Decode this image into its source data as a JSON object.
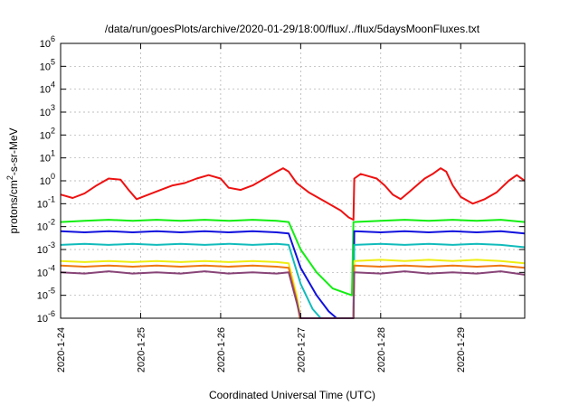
{
  "chart_data": {
    "type": "line",
    "title": "/data/run/goesPlots/archive/2020-01-29/18:00/flux/../flux/5daysMoonFluxes.txt",
    "xlabel": "Coordinated Universal Time (UTC)",
    "ylabel_parts": {
      "pre": "protons/cm",
      "sup": "2",
      "post": "-s-sr-MeV"
    },
    "y_scale": "log",
    "ylim_exp": [
      -6,
      6
    ],
    "y_ticks": [
      {
        "base": "10",
        "exp": "-6"
      },
      {
        "base": "10",
        "exp": "-5"
      },
      {
        "base": "10",
        "exp": "-4"
      },
      {
        "base": "10",
        "exp": "-3"
      },
      {
        "base": "10",
        "exp": "-2"
      },
      {
        "base": "10",
        "exp": "-1"
      },
      {
        "base": "10",
        "exp": "0"
      },
      {
        "base": "10",
        "exp": "1"
      },
      {
        "base": "10",
        "exp": "2"
      },
      {
        "base": "10",
        "exp": "3"
      },
      {
        "base": "10",
        "exp": "4"
      },
      {
        "base": "10",
        "exp": "5"
      },
      {
        "base": "10",
        "exp": "6"
      }
    ],
    "xlim_days": [
      0,
      5.8
    ],
    "x_ticks": [
      "2020-1-24",
      "2020-1-25",
      "2020-1-26",
      "2020-1-27",
      "2020-1-28",
      "2020-1-29"
    ],
    "grid": true,
    "series": [
      {
        "color": "#ee1111",
        "points": [
          [
            0,
            -0.6
          ],
          [
            0.15,
            -0.75
          ],
          [
            0.3,
            -0.55
          ],
          [
            0.45,
            -0.2
          ],
          [
            0.6,
            0.1
          ],
          [
            0.75,
            0.05
          ],
          [
            0.85,
            -0.4
          ],
          [
            0.95,
            -0.8
          ],
          [
            1.1,
            -0.6
          ],
          [
            1.25,
            -0.4
          ],
          [
            1.4,
            -0.2
          ],
          [
            1.55,
            -0.1
          ],
          [
            1.7,
            0.1
          ],
          [
            1.85,
            0.25
          ],
          [
            2.0,
            0.1
          ],
          [
            2.1,
            -0.3
          ],
          [
            2.25,
            -0.4
          ],
          [
            2.4,
            -0.2
          ],
          [
            2.55,
            0.1
          ],
          [
            2.7,
            0.4
          ],
          [
            2.78,
            0.55
          ],
          [
            2.85,
            0.4
          ],
          [
            2.95,
            -0.1
          ],
          [
            3.1,
            -0.5
          ],
          [
            3.3,
            -0.9
          ],
          [
            3.5,
            -1.3
          ],
          [
            3.6,
            -1.6
          ],
          [
            3.66,
            -1.7
          ],
          [
            3.67,
            0.1
          ],
          [
            3.75,
            0.3
          ],
          [
            3.85,
            0.2
          ],
          [
            3.95,
            0.1
          ],
          [
            4.05,
            -0.2
          ],
          [
            4.15,
            -0.6
          ],
          [
            4.25,
            -0.8
          ],
          [
            4.35,
            -0.5
          ],
          [
            4.45,
            -0.2
          ],
          [
            4.55,
            0.1
          ],
          [
            4.65,
            0.3
          ],
          [
            4.75,
            0.55
          ],
          [
            4.82,
            0.4
          ],
          [
            4.9,
            -0.2
          ],
          [
            5.0,
            -0.7
          ],
          [
            5.15,
            -1.0
          ],
          [
            5.3,
            -0.8
          ],
          [
            5.45,
            -0.5
          ],
          [
            5.6,
            0
          ],
          [
            5.7,
            0.25
          ],
          [
            5.8,
            0
          ]
        ]
      },
      {
        "color": "#11ee11",
        "points": [
          [
            0,
            -1.8
          ],
          [
            0.3,
            -1.75
          ],
          [
            0.6,
            -1.7
          ],
          [
            0.9,
            -1.75
          ],
          [
            1.2,
            -1.7
          ],
          [
            1.5,
            -1.75
          ],
          [
            1.8,
            -1.7
          ],
          [
            2.1,
            -1.75
          ],
          [
            2.4,
            -1.7
          ],
          [
            2.7,
            -1.75
          ],
          [
            2.85,
            -1.8
          ],
          [
            3.0,
            -3.0
          ],
          [
            3.2,
            -4.0
          ],
          [
            3.4,
            -4.7
          ],
          [
            3.64,
            -5.0
          ],
          [
            3.66,
            -1.8
          ],
          [
            4.0,
            -1.75
          ],
          [
            4.3,
            -1.7
          ],
          [
            4.6,
            -1.75
          ],
          [
            4.9,
            -1.7
          ],
          [
            5.2,
            -1.75
          ],
          [
            5.5,
            -1.7
          ],
          [
            5.8,
            -1.8
          ]
        ]
      },
      {
        "color": "#1111dd",
        "points": [
          [
            0,
            -2.2
          ],
          [
            0.3,
            -2.25
          ],
          [
            0.6,
            -2.2
          ],
          [
            0.9,
            -2.25
          ],
          [
            1.2,
            -2.2
          ],
          [
            1.5,
            -2.25
          ],
          [
            1.8,
            -2.2
          ],
          [
            2.1,
            -2.25
          ],
          [
            2.4,
            -2.2
          ],
          [
            2.7,
            -2.25
          ],
          [
            2.85,
            -2.3
          ],
          [
            3.0,
            -3.8
          ],
          [
            3.2,
            -5.0
          ],
          [
            3.35,
            -5.7
          ],
          [
            3.45,
            -6.0
          ],
          [
            3.66,
            -6.0
          ],
          [
            3.67,
            -2.2
          ],
          [
            4.0,
            -2.25
          ],
          [
            4.3,
            -2.2
          ],
          [
            4.6,
            -2.25
          ],
          [
            4.9,
            -2.2
          ],
          [
            5.2,
            -2.25
          ],
          [
            5.5,
            -2.2
          ],
          [
            5.8,
            -2.3
          ]
        ]
      },
      {
        "color": "#11bbbb",
        "points": [
          [
            0,
            -2.8
          ],
          [
            0.3,
            -2.75
          ],
          [
            0.6,
            -2.8
          ],
          [
            0.9,
            -2.75
          ],
          [
            1.2,
            -2.8
          ],
          [
            1.5,
            -2.75
          ],
          [
            1.8,
            -2.8
          ],
          [
            2.1,
            -2.75
          ],
          [
            2.4,
            -2.8
          ],
          [
            2.7,
            -2.75
          ],
          [
            2.85,
            -2.8
          ],
          [
            3.0,
            -4.5
          ],
          [
            3.15,
            -5.6
          ],
          [
            3.25,
            -6.0
          ],
          [
            3.66,
            -6.0
          ],
          [
            3.67,
            -2.8
          ],
          [
            4.0,
            -2.75
          ],
          [
            4.3,
            -2.8
          ],
          [
            4.6,
            -2.75
          ],
          [
            4.9,
            -2.8
          ],
          [
            5.2,
            -2.75
          ],
          [
            5.5,
            -2.8
          ],
          [
            5.8,
            -2.9
          ]
        ]
      },
      {
        "color": "#eeee11",
        "points": [
          [
            0,
            -3.5
          ],
          [
            0.3,
            -3.55
          ],
          [
            0.6,
            -3.5
          ],
          [
            0.9,
            -3.55
          ],
          [
            1.2,
            -3.5
          ],
          [
            1.5,
            -3.55
          ],
          [
            1.8,
            -3.5
          ],
          [
            2.1,
            -3.55
          ],
          [
            2.4,
            -3.5
          ],
          [
            2.7,
            -3.55
          ],
          [
            2.85,
            -3.6
          ],
          [
            2.95,
            -5.0
          ],
          [
            3.0,
            -6.0
          ],
          [
            3.66,
            -6.0
          ],
          [
            3.67,
            -3.5
          ],
          [
            4.0,
            -3.45
          ],
          [
            4.3,
            -3.5
          ],
          [
            4.6,
            -3.45
          ],
          [
            4.9,
            -3.5
          ],
          [
            5.2,
            -3.45
          ],
          [
            5.5,
            -3.5
          ],
          [
            5.8,
            -3.6
          ]
        ]
      },
      {
        "color": "#ee7711",
        "points": [
          [
            0,
            -3.7
          ],
          [
            0.3,
            -3.75
          ],
          [
            0.6,
            -3.7
          ],
          [
            0.9,
            -3.75
          ],
          [
            1.2,
            -3.7
          ],
          [
            1.5,
            -3.75
          ],
          [
            1.8,
            -3.7
          ],
          [
            2.1,
            -3.75
          ],
          [
            2.4,
            -3.7
          ],
          [
            2.7,
            -3.75
          ],
          [
            2.85,
            -3.8
          ],
          [
            2.95,
            -5.2
          ],
          [
            2.99,
            -6.0
          ],
          [
            3.66,
            -6.0
          ],
          [
            3.67,
            -3.7
          ],
          [
            4.0,
            -3.75
          ],
          [
            4.3,
            -3.7
          ],
          [
            4.6,
            -3.75
          ],
          [
            4.9,
            -3.7
          ],
          [
            5.2,
            -3.75
          ],
          [
            5.5,
            -3.7
          ],
          [
            5.8,
            -3.8
          ]
        ]
      },
      {
        "color": "#884477",
        "points": [
          [
            0,
            -4.0
          ],
          [
            0.3,
            -4.05
          ],
          [
            0.6,
            -3.95
          ],
          [
            0.9,
            -4.05
          ],
          [
            1.2,
            -4.0
          ],
          [
            1.5,
            -4.05
          ],
          [
            1.8,
            -3.95
          ],
          [
            2.1,
            -4.05
          ],
          [
            2.4,
            -4.0
          ],
          [
            2.7,
            -4.05
          ],
          [
            2.85,
            -4.0
          ],
          [
            2.95,
            -5.3
          ],
          [
            3.0,
            -6.0
          ],
          [
            3.66,
            -6.0
          ],
          [
            3.67,
            -4.0
          ],
          [
            4.0,
            -4.05
          ],
          [
            4.3,
            -3.95
          ],
          [
            4.6,
            -4.05
          ],
          [
            4.9,
            -4.0
          ],
          [
            5.2,
            -4.05
          ],
          [
            5.5,
            -3.95
          ],
          [
            5.8,
            -4.1
          ]
        ]
      }
    ]
  }
}
